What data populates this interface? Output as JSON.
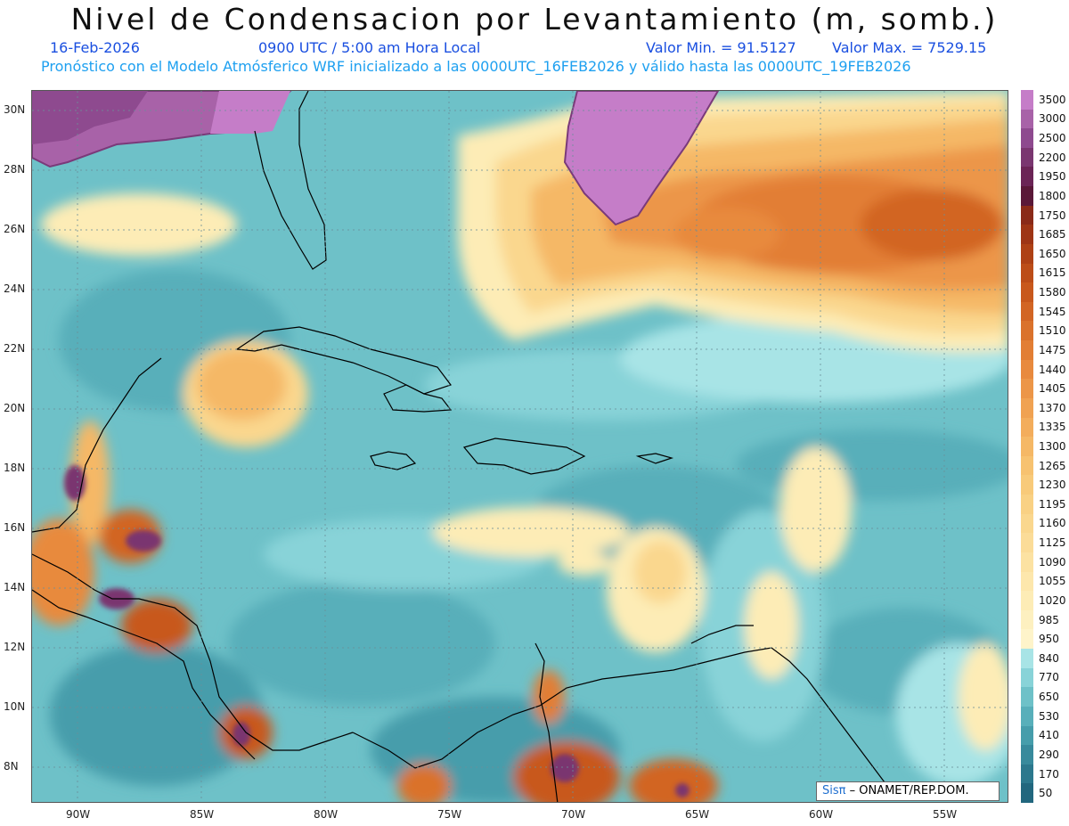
{
  "header": {
    "title": "Nivel de Condensacion por Levantamiento (m, somb.)",
    "date": "16-Feb-2026",
    "time": "0900 UTC / 5:00 am Hora Local",
    "valor_min": "Valor Min. = 91.5127",
    "valor_max": "Valor Max. = 7529.15",
    "forecast_line": "Pronóstico con el Modelo Atmósferico WRF inicializado a las 0000UTC_16FEB2026 y válido hasta las  0000UTC_19FEB2026",
    "blue_color": "#1a4fe0",
    "cyan_color": "#1ea0f0"
  },
  "map": {
    "lat_labels": [
      "30N",
      "28N",
      "26N",
      "24N",
      "22N",
      "20N",
      "18N",
      "16N",
      "14N",
      "12N",
      "10N",
      "8N"
    ],
    "lon_labels": [
      "90W",
      "85W",
      "80W",
      "75W",
      "70W",
      "65W",
      "60W",
      "55W"
    ],
    "lat_range": [
      6.8,
      30.5
    ],
    "lon_range": [
      -92,
      -52.5
    ]
  },
  "colorbar": {
    "labels": [
      "3500",
      "3000",
      "2500",
      "2200",
      "1950",
      "1800",
      "1750",
      "1685",
      "1650",
      "1615",
      "1580",
      "1545",
      "1510",
      "1475",
      "1440",
      "1405",
      "1370",
      "1335",
      "1300",
      "1265",
      "1230",
      "1195",
      "1160",
      "1125",
      "1090",
      "1055",
      "1020",
      "985",
      "950",
      "840",
      "770",
      "650",
      "530",
      "410",
      "290",
      "170",
      "50"
    ],
    "colors": [
      "#c57dc8",
      "#a862a8",
      "#8e4a8f",
      "#7a3670",
      "#6b2456",
      "#5a1838",
      "#8a2a18",
      "#9e3515",
      "#ae4115",
      "#bc4d18",
      "#c8581c",
      "#d26524",
      "#da722c",
      "#e27e34",
      "#e88a3e",
      "#ec9648",
      "#f0a252",
      "#f3ad5c",
      "#f5b866",
      "#f7c270",
      "#f8ca7a",
      "#f9d184",
      "#fad78e",
      "#fbdc98",
      "#fce2a2",
      "#fde7ac",
      "#fdecb6",
      "#fdf0c0",
      "#fef4ca",
      "#a8e4e6",
      "#88d3d8",
      "#6ec1c8",
      "#58afba",
      "#469dab",
      "#388a9c",
      "#2c788d",
      "#22677e"
    ]
  },
  "credit": {
    "sis": "Sisπ",
    "rest": " – ONAMET/REP.DOM."
  }
}
